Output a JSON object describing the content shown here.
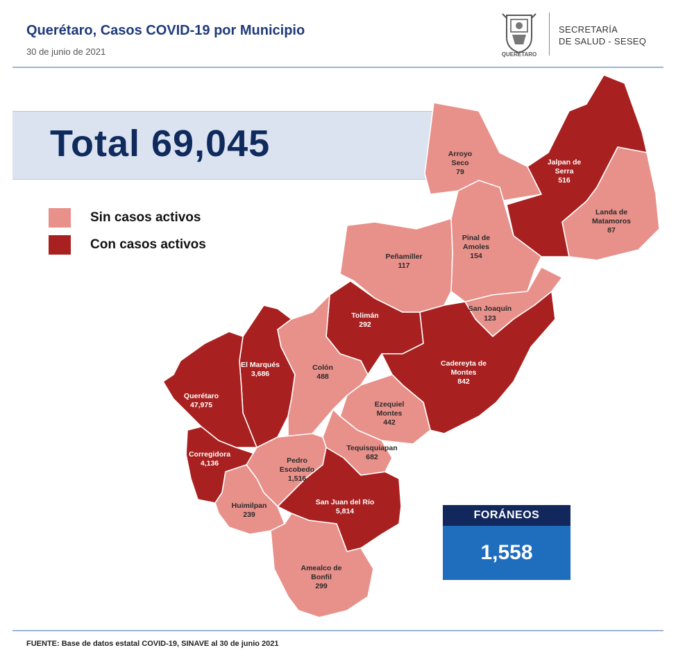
{
  "header": {
    "title": "Querétaro, Casos COVID-19 por Municipio",
    "date": "30 de junio de 2021",
    "logo_text": "QUERÉTARO",
    "department_line1": "SECRETARÍA",
    "department_line2": "DE SALUD - SESEQ"
  },
  "total": {
    "label": "Total 69,045"
  },
  "legend": [
    {
      "label": "Sin casos activos",
      "color": "#e8908a"
    },
    {
      "label": "Con casos activos",
      "color": "#a8201f"
    }
  ],
  "colors": {
    "inactive": "#e8908a",
    "active": "#a8201f",
    "border": "#ffffff"
  },
  "municipalities": [
    {
      "name_line1": "Arroyo",
      "name_line2": "Seco",
      "cases": "79",
      "active": false
    },
    {
      "name_line1": "Jalpan de",
      "name_line2": "Serra",
      "cases": "516",
      "active": true
    },
    {
      "name_line1": "Landa de",
      "name_line2": "Matamoros",
      "cases": "87",
      "active": false
    },
    {
      "name_line1": "Pinal de",
      "name_line2": "Amoles",
      "cases": "154",
      "active": false
    },
    {
      "name_line1": "Peñamiller",
      "name_line2": "",
      "cases": "117",
      "active": false
    },
    {
      "name_line1": "San Joaquín",
      "name_line2": "",
      "cases": "123",
      "active": false
    },
    {
      "name_line1": "Tolimán",
      "name_line2": "",
      "cases": "292",
      "active": true
    },
    {
      "name_line1": "Cadereyta de",
      "name_line2": "Montes",
      "cases": "842",
      "active": true
    },
    {
      "name_line1": "El  Marqués",
      "name_line2": "",
      "cases": "3,686",
      "active": true
    },
    {
      "name_line1": "Colón",
      "name_line2": "",
      "cases": "488",
      "active": false
    },
    {
      "name_line1": "Querétaro",
      "name_line2": "",
      "cases": "47,975",
      "active": true
    },
    {
      "name_line1": "Ezequiel",
      "name_line2": "Montes",
      "cases": "442",
      "active": false
    },
    {
      "name_line1": "Tequisquiapan",
      "name_line2": "",
      "cases": "682",
      "active": false
    },
    {
      "name_line1": "Corregidora",
      "name_line2": "",
      "cases": "4,136",
      "active": true
    },
    {
      "name_line1": "Pedro",
      "name_line2": "Escobedo",
      "cases": "1,516",
      "active": false
    },
    {
      "name_line1": "Huimilpan",
      "name_line2": "",
      "cases": "239",
      "active": false
    },
    {
      "name_line1": "San Juan del Río",
      "name_line2": "",
      "cases": "5,814",
      "active": true
    },
    {
      "name_line1": "Amealco de",
      "name_line2": "Bonfil",
      "cases": "299",
      "active": false
    }
  ],
  "foraneos": {
    "label": "FORÁNEOS",
    "value": "1,558"
  },
  "source": "FUENTE:  Base de datos estatal COVID-19,  SINAVE  al 30 de junio 2021"
}
